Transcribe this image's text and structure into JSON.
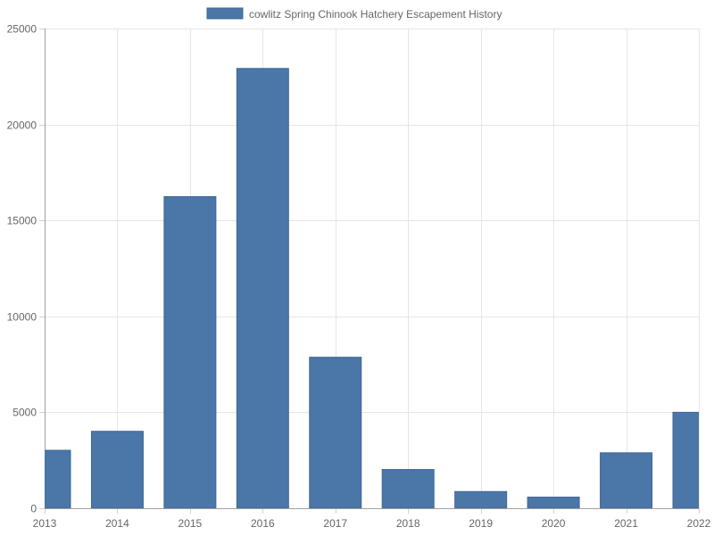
{
  "chart_data": {
    "type": "bar",
    "title": "",
    "xlabel": "",
    "ylabel": "",
    "categories": [
      "2013",
      "2014",
      "2015",
      "2016",
      "2017",
      "2018",
      "2019",
      "2020",
      "2021",
      "2022"
    ],
    "series": [
      {
        "name": "cowlitz Spring Chinook Hatchery Escapement History",
        "color": "#4a76a8",
        "values": [
          3020,
          4010,
          16240,
          22920,
          7870,
          2020,
          870,
          580,
          2890,
          5000
        ]
      }
    ],
    "ylim": [
      0,
      25000
    ],
    "yticks": [
      "0",
      "5000",
      "10000",
      "15000",
      "20000",
      "25000"
    ],
    "grid": true,
    "legend_position": "top-center"
  }
}
